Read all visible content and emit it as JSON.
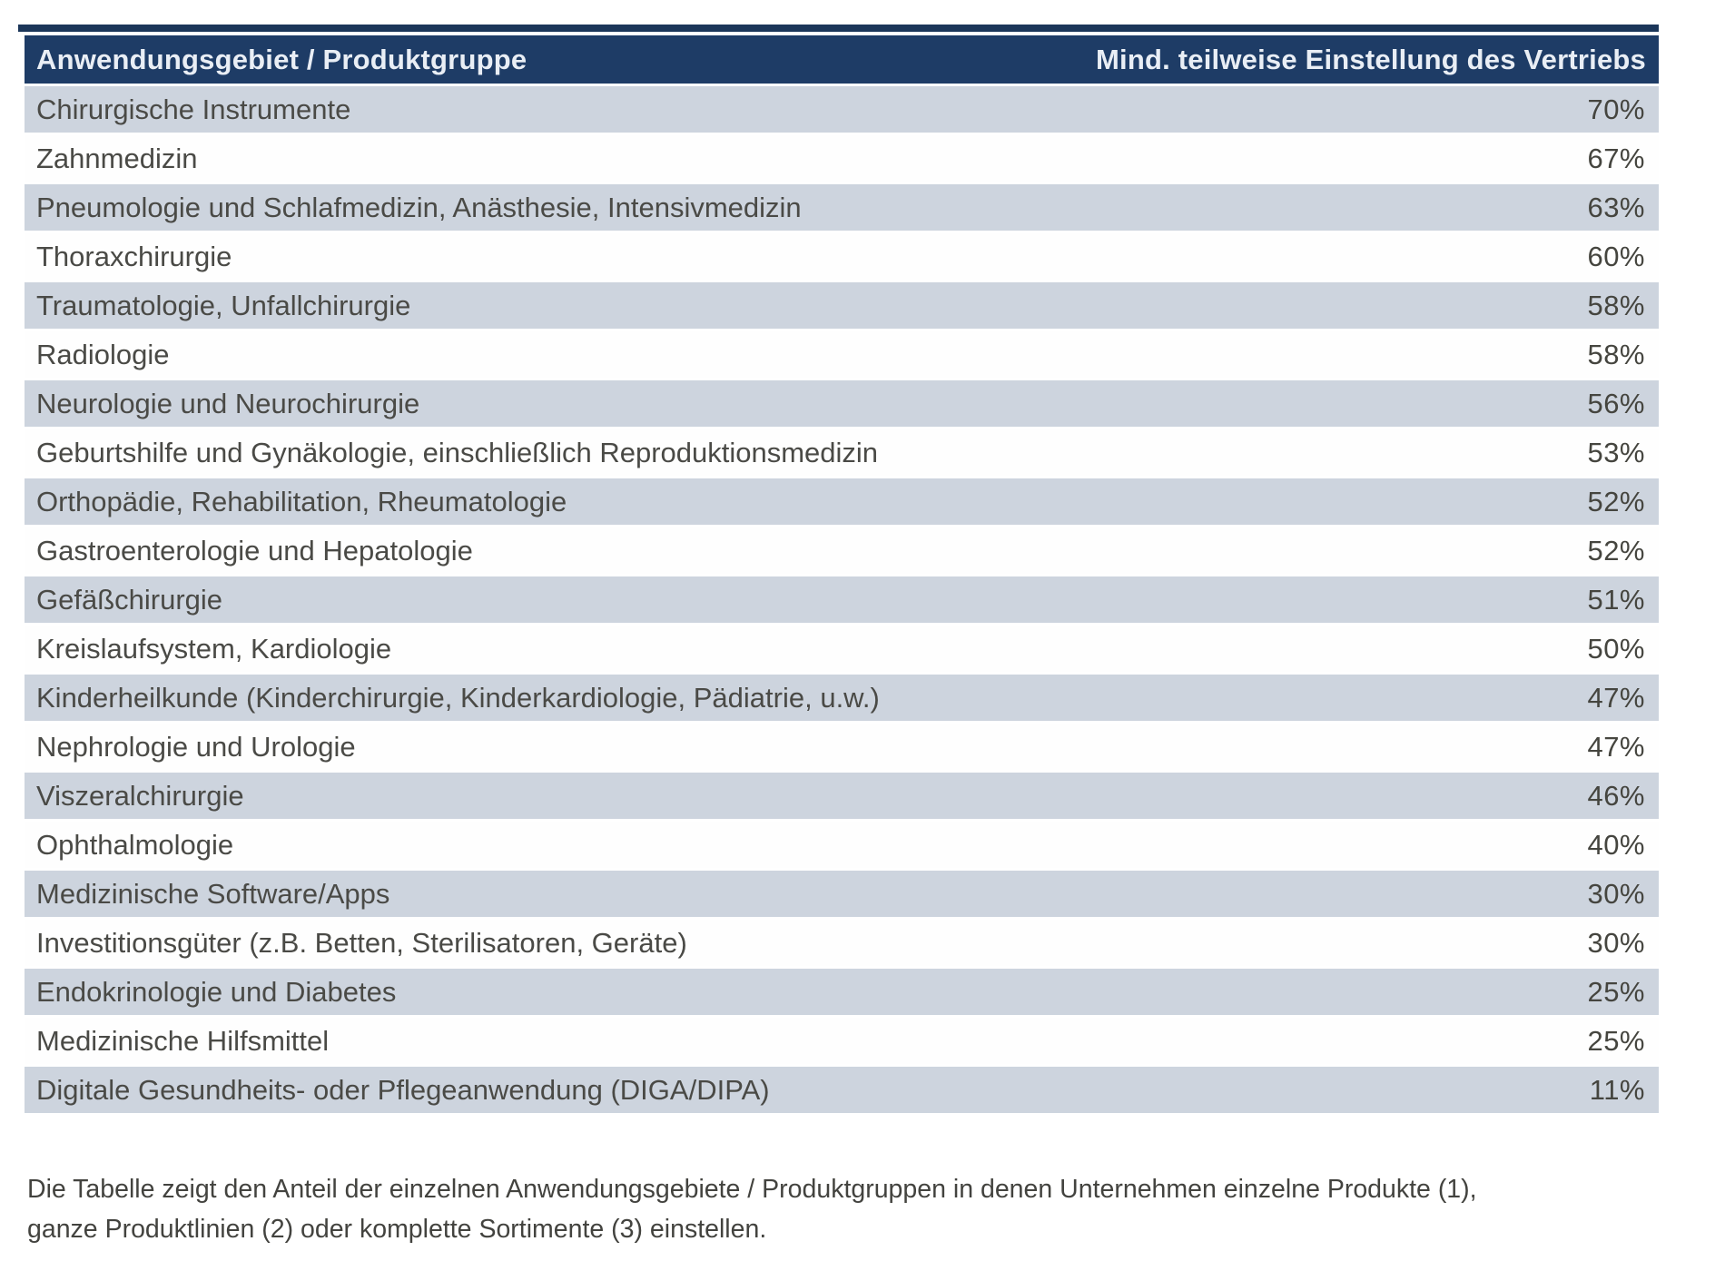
{
  "table": {
    "header": {
      "col1": "Anwendungsgebiet / Produktgruppe",
      "col2": "Mind. teilweise Einstellung des Vertriebs"
    },
    "rows": [
      {
        "label": "Chirurgische Instrumente",
        "value": "70%"
      },
      {
        "label": "Zahnmedizin",
        "value": "67%"
      },
      {
        "label": "Pneumologie und Schlafmedizin, Anästhesie, Intensivmedizin",
        "value": "63%"
      },
      {
        "label": "Thoraxchirurgie",
        "value": "60%"
      },
      {
        "label": "Traumatologie, Unfallchirurgie",
        "value": "58%"
      },
      {
        "label": "Radiologie",
        "value": "58%"
      },
      {
        "label": "Neurologie und Neurochirurgie",
        "value": "56%"
      },
      {
        "label": "Geburtshilfe und Gynäkologie, einschließlich Reproduktionsmedizin",
        "value": "53%"
      },
      {
        "label": "Orthopädie, Rehabilitation, Rheumatologie",
        "value": "52%"
      },
      {
        "label": "Gastroenterologie und Hepatologie",
        "value": "52%"
      },
      {
        "label": "Gefäßchirurgie",
        "value": "51%"
      },
      {
        "label": "Kreislaufsystem, Kardiologie",
        "value": "50%"
      },
      {
        "label": "Kinderheilkunde (Kinderchirurgie, Kinderkardiologie, Pädiatrie, u.w.)",
        "value": "47%"
      },
      {
        "label": "Nephrologie und Urologie",
        "value": "47%"
      },
      {
        "label": "Viszeralchirurgie",
        "value": "46%"
      },
      {
        "label": "Ophthalmologie",
        "value": "40%"
      },
      {
        "label": "Medizinische Software/Apps",
        "value": "30%"
      },
      {
        "label": "Investitionsgüter (z.B. Betten, Sterilisatoren, Geräte)",
        "value": "30%"
      },
      {
        "label": "Endokrinologie und Diabetes",
        "value": "25%"
      },
      {
        "label": "Medizinische Hilfsmittel",
        "value": "25%"
      },
      {
        "label": "Digitale Gesundheits- oder Pflegeanwendung (DIGA/DIPA)",
        "value": "11%"
      }
    ]
  },
  "footnote": {
    "line1": "Die Tabelle zeigt den Anteil der einzelnen Anwendungsgebiete / Produktgruppen in denen Unternehmen einzelne Produkte (1),",
    "line2": "ganze Produktlinien (2) oder komplette Sortimente (3) einstellen."
  },
  "colors": {
    "header_bg": "#1e3c66",
    "header_text": "#e9eef5",
    "top_rule": "#1b3659",
    "row_shaded_bg": "#cdd4de",
    "row_plain_bg": "#fefefe",
    "row_text": "#4a4a46"
  },
  "chart_data": {
    "type": "table",
    "title": "Mind. teilweise Einstellung des Vertriebs nach Anwendungsgebiet / Produktgruppe",
    "columns": [
      "Anwendungsgebiet / Produktgruppe",
      "Mind. teilweise Einstellung des Vertriebs"
    ],
    "categories": [
      "Chirurgische Instrumente",
      "Zahnmedizin",
      "Pneumologie und Schlafmedizin, Anästhesie, Intensivmedizin",
      "Thoraxchirurgie",
      "Traumatologie, Unfallchirurgie",
      "Radiologie",
      "Neurologie und Neurochirurgie",
      "Geburtshilfe und Gynäkologie, einschließlich Reproduktionsmedizin",
      "Orthopädie, Rehabilitation, Rheumatologie",
      "Gastroenterologie und Hepatologie",
      "Gefäßchirurgie",
      "Kreislaufsystem, Kardiologie",
      "Kinderheilkunde (Kinderchirurgie, Kinderkardiologie, Pädiatrie, u.w.)",
      "Nephrologie und Urologie",
      "Viszeralchirurgie",
      "Ophthalmologie",
      "Medizinische Software/Apps",
      "Investitionsgüter (z.B. Betten, Sterilisatoren, Geräte)",
      "Endokrinologie und Diabetes",
      "Medizinische Hilfsmittel",
      "Digitale Gesundheits- oder Pflegeanwendung (DIGA/DIPA)"
    ],
    "values_percent": [
      70,
      67,
      63,
      60,
      58,
      58,
      56,
      53,
      52,
      52,
      51,
      50,
      47,
      47,
      46,
      40,
      30,
      30,
      25,
      25,
      11
    ]
  }
}
